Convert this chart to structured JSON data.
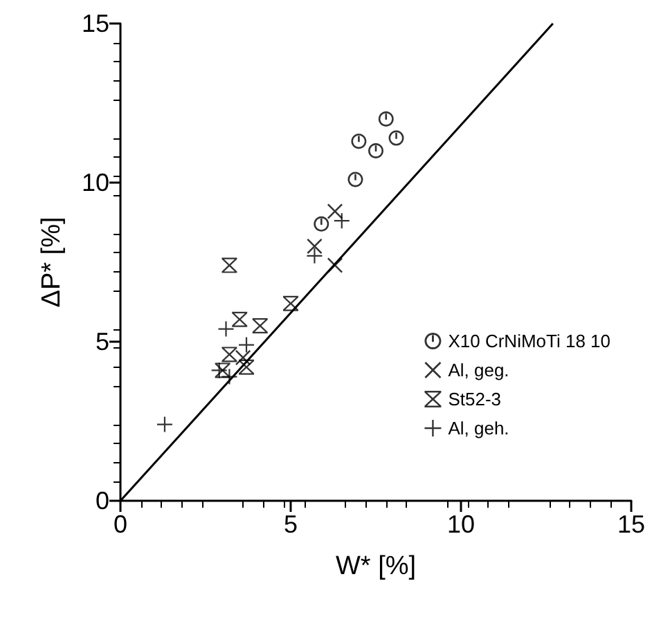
{
  "chart_data": {
    "type": "scatter",
    "xlabel": "W* [%]",
    "ylabel": "ΔP* [%]",
    "xlim": [
      0,
      15
    ],
    "ylim": [
      0,
      15
    ],
    "xticks": [
      0,
      5,
      10,
      15
    ],
    "yticks": [
      0,
      5,
      10,
      15
    ],
    "grid": false,
    "legend": "right",
    "series": [
      {
        "name": "X10 CrNiMoTi 18 10",
        "color": "#000000",
        "marker": "circle",
        "x": [
          7.8,
          7.0,
          7.5,
          8.1,
          6.9,
          5.9
        ],
        "values": [
          12.0,
          11.3,
          11.0,
          11.4,
          10.1,
          8.7
        ]
      },
      {
        "name": "Al, geg.",
        "color": "#000000",
        "marker": "x",
        "x": [
          5.7,
          6.3,
          6.3,
          3.6
        ],
        "values": [
          8.0,
          9.1,
          7.4,
          4.5
        ]
      },
      {
        "name": "St52-3",
        "color": "#000000",
        "x": [
          3.2,
          3.5,
          4.1,
          5.0,
          3.2,
          3.7,
          3.0
        ],
        "values": [
          7.4,
          5.7,
          5.5,
          6.2,
          4.6,
          4.2,
          4.1
        ]
      },
      {
        "name": "Al, geh.",
        "color": "#000000",
        "marker": "cross",
        "x": [
          5.7,
          6.5,
          3.1,
          3.7,
          2.9,
          3.2,
          1.3
        ],
        "values": [
          7.7,
          8.8,
          5.4,
          4.9,
          4.1,
          3.9,
          2.4
        ]
      },
      {
        "type": "line",
        "color": "#000000",
        "marker": "none",
        "line_style": "solid",
        "x": [
          0,
          12.7
        ],
        "values": [
          0,
          15
        ]
      }
    ]
  }
}
